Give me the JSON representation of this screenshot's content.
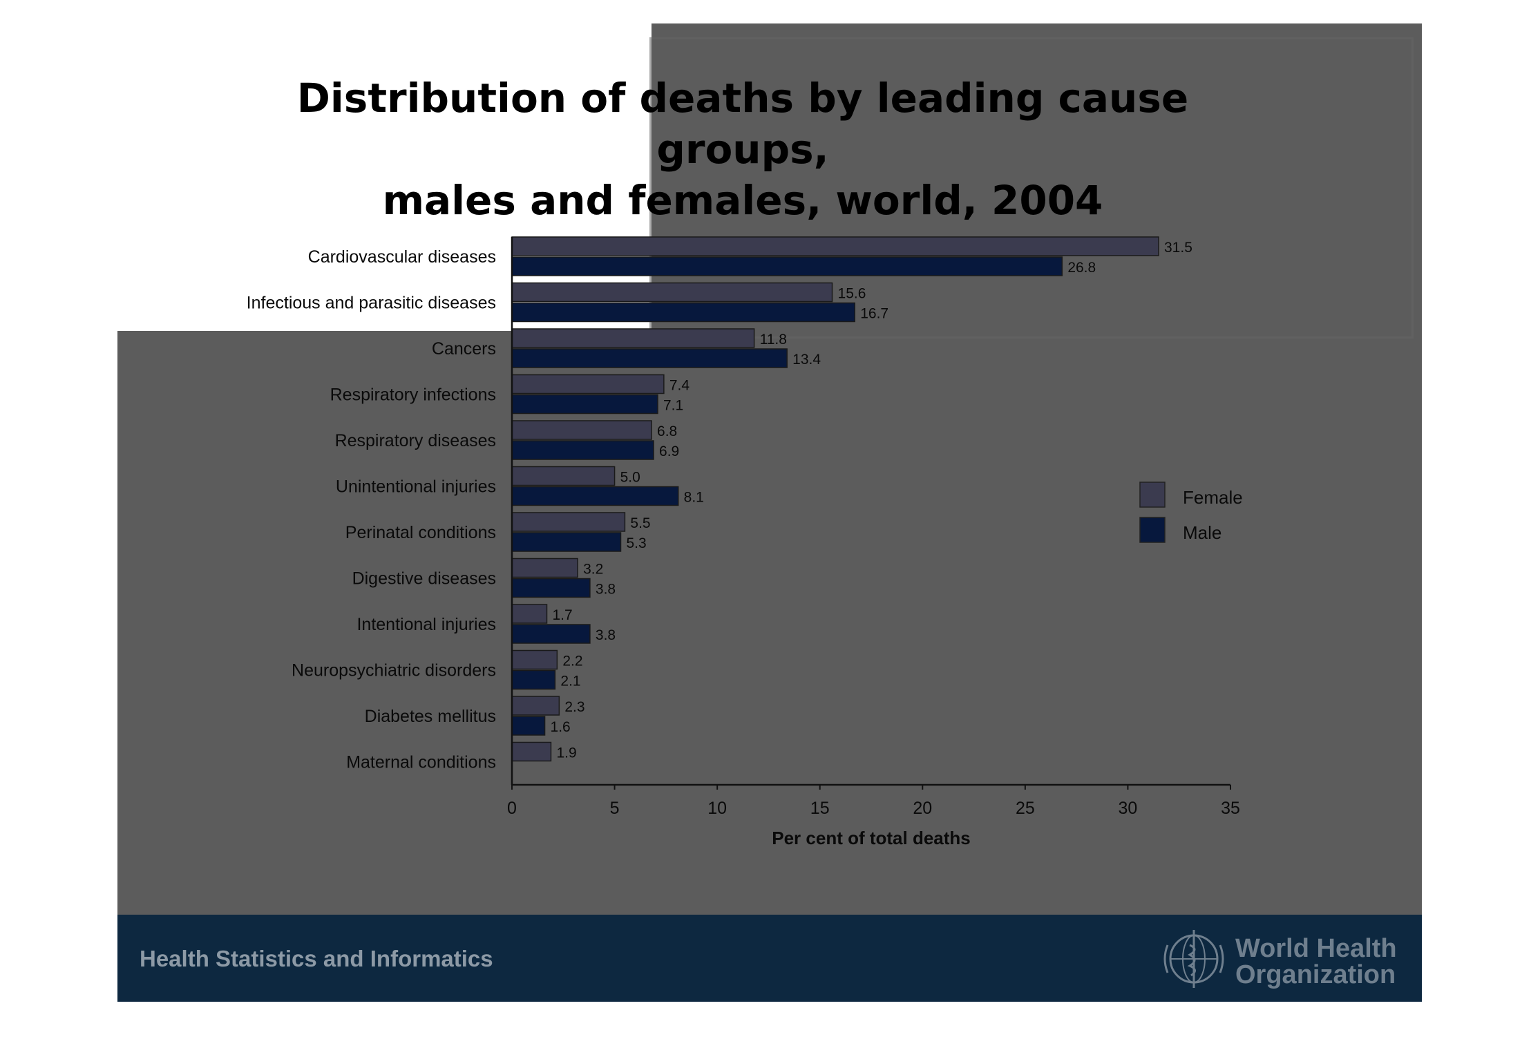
{
  "slide": {
    "title_line1": "Distribution of deaths by leading cause groups,",
    "title_line2": "males and females, world, 2004"
  },
  "chart_data": {
    "type": "bar",
    "orientation": "horizontal",
    "categories": [
      "Cardiovascular diseases",
      "Infectious and parasitic diseases",
      "Cancers",
      "Respiratory infections",
      "Respiratory diseases",
      "Unintentional injuries",
      "Perinatal conditions",
      "Digestive diseases",
      "Intentional injuries",
      "Neuropsychiatric disorders",
      "Diabetes mellitus",
      "Maternal conditions"
    ],
    "series": [
      {
        "name": "Female",
        "color": "#3b3b4f",
        "values": [
          31.5,
          15.6,
          11.8,
          7.4,
          6.8,
          5.0,
          5.5,
          3.2,
          1.7,
          2.2,
          2.3,
          1.9
        ],
        "labels": [
          "31.5",
          "15.6",
          "11.8",
          "7.4",
          "6.8",
          "5.0",
          "5.5",
          "3.2",
          "1.7",
          "2.2",
          "2.3",
          "1.9"
        ]
      },
      {
        "name": "Male",
        "color": "#07183d",
        "values": [
          26.8,
          16.7,
          13.4,
          7.1,
          6.9,
          8.1,
          5.3,
          3.8,
          3.8,
          2.1,
          1.6,
          null
        ],
        "labels": [
          "26.8",
          "16.7",
          "13.4",
          "7.1",
          "6.9",
          "8.1",
          "5.3",
          "3.8",
          "3.8",
          "2.1",
          "1.6",
          null
        ]
      }
    ],
    "xlabel": "Per cent of total deaths",
    "xlim": [
      0,
      35
    ],
    "xticks": [
      0,
      5,
      10,
      15,
      20,
      25,
      30,
      35
    ],
    "grid": false,
    "legend_position": "right"
  },
  "footer": {
    "left_text": "Health Statistics and Informatics",
    "org_line1": "World Health",
    "org_line2": "Organization"
  },
  "icons": {
    "logo": "who-emblem-icon"
  }
}
